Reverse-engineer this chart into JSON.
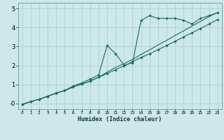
{
  "xlabel": "Humidex (Indice chaleur)",
  "bg_color": "#cce8e8",
  "grid_color": "#aacccc",
  "line_color": "#1a6b5a",
  "xlim": [
    -0.5,
    23.5
  ],
  "ylim": [
    -0.3,
    5.3
  ],
  "xticks": [
    0,
    1,
    2,
    3,
    4,
    5,
    6,
    7,
    8,
    9,
    10,
    11,
    12,
    13,
    14,
    15,
    16,
    17,
    18,
    19,
    20,
    21,
    22,
    23
  ],
  "yticks": [
    0,
    1,
    2,
    3,
    4,
    5
  ],
  "ytick_labels": [
    "-0",
    "1",
    "2",
    "3",
    "4",
    "5"
  ],
  "line1_x": [
    0,
    1,
    2,
    3,
    4,
    5,
    6,
    7,
    8,
    9,
    10,
    11,
    12,
    13,
    14,
    15,
    16,
    17,
    18,
    19,
    20,
    21,
    22,
    23
  ],
  "line1_y": [
    -0.05,
    0.1,
    0.22,
    0.38,
    0.55,
    0.68,
    0.87,
    1.02,
    1.18,
    1.38,
    1.58,
    1.78,
    1.98,
    2.2,
    2.42,
    2.62,
    2.83,
    3.05,
    3.27,
    3.5,
    3.72,
    3.95,
    4.18,
    4.42
  ],
  "line2_x": [
    0,
    1,
    2,
    3,
    4,
    5,
    6,
    7,
    8,
    9,
    10,
    11,
    12,
    13,
    14,
    15,
    16,
    17,
    18,
    19,
    20,
    21,
    22,
    23
  ],
  "line2_y": [
    -0.05,
    0.1,
    0.22,
    0.38,
    0.55,
    0.68,
    0.92,
    1.08,
    1.28,
    1.5,
    3.05,
    2.62,
    2.02,
    2.15,
    4.38,
    4.62,
    4.48,
    4.48,
    4.48,
    4.38,
    4.18,
    4.48,
    4.62,
    4.78
  ],
  "line3_x": [
    0,
    1,
    2,
    3,
    4,
    5,
    6,
    7,
    8,
    9,
    10,
    11,
    12,
    13,
    14,
    15,
    16,
    17,
    18,
    19,
    20,
    21,
    22,
    23
  ],
  "line3_y": [
    -0.05,
    0.1,
    0.22,
    0.38,
    0.55,
    0.68,
    0.87,
    1.02,
    1.18,
    1.38,
    1.65,
    1.9,
    2.1,
    2.32,
    2.58,
    2.82,
    3.08,
    3.32,
    3.58,
    3.82,
    4.08,
    4.32,
    4.58,
    4.78
  ]
}
